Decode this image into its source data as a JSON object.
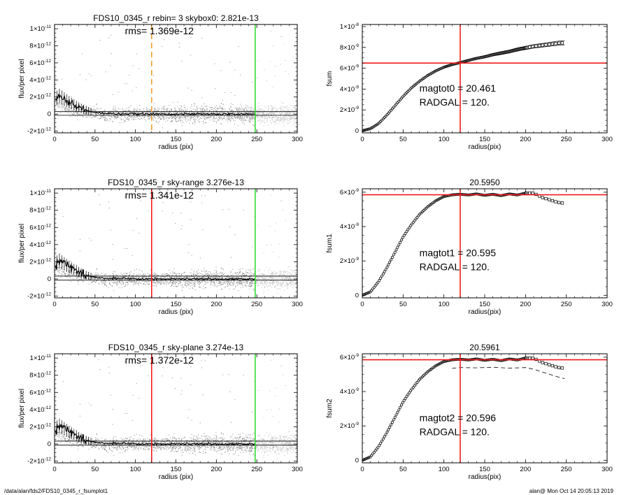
{
  "footer": {
    "path": "/data/alan/fds2/FDS10_0345_r_fsumplot1",
    "stamp": "alan@  Mon Oct 14 20:05:13 2019"
  },
  "colors": {
    "red": "#ee1c1c",
    "green": "#33dd33",
    "orange": "#f0a030",
    "points": "#9a9a9a",
    "axis": "#000000"
  },
  "chart_data": [
    {
      "id": "profile-1",
      "type": "scatter",
      "title": "FDS10_0345_r rebin= 3    skybox0:  2.821e-13",
      "annotation": "rms= 1.369e-12",
      "xlabel": "radius (pix)",
      "ylabel": "flux/per pixel",
      "xlim": [
        0,
        300
      ],
      "ylim": [
        -2.2e-12,
        1.05e-11
      ],
      "xticks": [
        0,
        50,
        100,
        150,
        200,
        250,
        300
      ],
      "yticks": [
        {
          "m": "-2",
          "e": "-12",
          "v": -2e-12
        },
        {
          "m": "0",
          "e": "",
          "v": 0
        },
        {
          "m": "2",
          "e": "-12",
          "v": 2e-12
        },
        {
          "m": "4",
          "e": "-12",
          "v": 4e-12
        },
        {
          "m": "6",
          "e": "-12",
          "v": 6e-12
        },
        {
          "m": "8",
          "e": "-12",
          "v": 8e-12
        },
        {
          "m": "1",
          "e": "-11",
          "v": 1e-11
        }
      ],
      "vlines": [
        {
          "x": 120,
          "color": "#f0a030",
          "style": "dashed"
        },
        {
          "x": 248,
          "color": "#33dd33",
          "style": "solid"
        }
      ],
      "hlines": [
        2.821e-13,
        -1.4e-13
      ],
      "profile": {
        "x": [
          1,
          5,
          10,
          15,
          20,
          25,
          30,
          35,
          40,
          45,
          50,
          60,
          70,
          80,
          100,
          120,
          150,
          200,
          248
        ],
        "y": [
          1.6e-12,
          2.2e-12,
          1.9e-12,
          1.6e-12,
          1.3e-12,
          1.05e-12,
          8e-13,
          6e-13,
          4.2e-13,
          2.8e-13,
          1.8e-13,
          1e-13,
          6e-14,
          3e-14,
          1e-14,
          0,
          0,
          0,
          0
        ]
      }
    },
    {
      "id": "fsum-0",
      "type": "line",
      "title": "",
      "xlabel": "radius(pix)",
      "ylabel": "fsum",
      "xlim": [
        0,
        300
      ],
      "ylim": [
        -2e-10,
        1.02e-08
      ],
      "xticks": [
        0,
        50,
        100,
        150,
        200,
        250,
        300
      ],
      "yticks": [
        {
          "m": "0",
          "e": "",
          "v": 0
        },
        {
          "m": "2",
          "e": "-9",
          "v": 2e-09
        },
        {
          "m": "4",
          "e": "-9",
          "v": 4e-09
        },
        {
          "m": "6",
          "e": "-9",
          "v": 6e-09
        },
        {
          "m": "8",
          "e": "-9",
          "v": 8e-09
        },
        {
          "m": "1",
          "e": "-8",
          "v": 1e-08
        }
      ],
      "vline_x": 120,
      "hline_y": 6.5e-09,
      "annotations": [
        "magtot0 =  20.461",
        "RADGAL =    120."
      ],
      "x": [
        0,
        10,
        20,
        30,
        40,
        50,
        60,
        70,
        80,
        90,
        100,
        110,
        120,
        130,
        140,
        150,
        160,
        170,
        180,
        190,
        200,
        210,
        220,
        230,
        240,
        248
      ],
      "y": [
        0,
        2e-10,
        7e-10,
        1.5e-09,
        2.4e-09,
        3.3e-09,
        4.1e-09,
        4.75e-09,
        5.3e-09,
        5.75e-09,
        6.1e-09,
        6.35e-09,
        6.55e-09,
        6.75e-09,
        6.95e-09,
        7.1e-09,
        7.3e-09,
        7.45e-09,
        7.6e-09,
        7.8e-09,
        7.95e-09,
        8.1e-09,
        8.2e-09,
        8.3e-09,
        8.4e-09,
        8.45e-09
      ],
      "envelope": 2e-10,
      "symbols_after": 200
    },
    {
      "id": "profile-2",
      "type": "scatter",
      "title": "FDS10_0345_r sky-range  3.276e-13",
      "annotation": "rms= 1.341e-12",
      "xlabel": "radius (pix)",
      "ylabel": "flux/per pixel",
      "xlim": [
        0,
        300
      ],
      "ylim": [
        -2.2e-12,
        1.05e-11
      ],
      "xticks": [
        0,
        50,
        100,
        150,
        200,
        250,
        300
      ],
      "yticks": [
        {
          "m": "-2",
          "e": "-12",
          "v": -2e-12
        },
        {
          "m": "0",
          "e": "",
          "v": 0
        },
        {
          "m": "2",
          "e": "-12",
          "v": 2e-12
        },
        {
          "m": "4",
          "e": "-12",
          "v": 4e-12
        },
        {
          "m": "6",
          "e": "-12",
          "v": 6e-12
        },
        {
          "m": "8",
          "e": "-12",
          "v": 8e-12
        },
        {
          "m": "1",
          "e": "-11",
          "v": 1e-11
        }
      ],
      "vlines": [
        {
          "x": 120,
          "color": "#ee1c1c",
          "style": "solid"
        },
        {
          "x": 248,
          "color": "#33dd33",
          "style": "solid"
        }
      ],
      "hlines": [
        3.276e-13,
        -1.4e-13
      ],
      "profile": {
        "x": [
          1,
          5,
          10,
          15,
          20,
          25,
          30,
          35,
          40,
          45,
          50,
          60,
          70,
          80,
          100,
          120,
          150,
          200,
          248
        ],
        "y": [
          1.6e-12,
          2.2e-12,
          1.9e-12,
          1.6e-12,
          1.3e-12,
          1.05e-12,
          8e-13,
          6e-13,
          4.2e-13,
          2.8e-13,
          1.8e-13,
          1e-13,
          6e-14,
          3e-14,
          1e-14,
          0,
          0,
          0,
          0
        ]
      }
    },
    {
      "id": "fsum-1",
      "type": "line",
      "title": "20.5950",
      "xlabel": "radius(pix)",
      "ylabel": "fsum1",
      "xlim": [
        0,
        300
      ],
      "ylim": [
        -1.5e-10,
        6.2e-09
      ],
      "xticks": [
        0,
        50,
        100,
        150,
        200,
        250,
        300
      ],
      "yticks": [
        {
          "m": "0",
          "e": "",
          "v": 0
        },
        {
          "m": "2",
          "e": "-9",
          "v": 2e-09
        },
        {
          "m": "4",
          "e": "-9",
          "v": 4e-09
        },
        {
          "m": "6",
          "e": "-9",
          "v": 6e-09
        }
      ],
      "vline_x": 120,
      "hline_y": 5.85e-09,
      "annotations": [
        "magtot1 =  20.595",
        "RADGAL =    120."
      ],
      "x": [
        0,
        10,
        20,
        30,
        40,
        50,
        60,
        70,
        80,
        90,
        100,
        110,
        120,
        130,
        140,
        150,
        160,
        170,
        180,
        190,
        200,
        210,
        220,
        230,
        240,
        248
      ],
      "y": [
        0,
        2e-10,
        8e-10,
        1.6e-09,
        2.5e-09,
        3.4e-09,
        4.1e-09,
        4.7e-09,
        5.15e-09,
        5.5e-09,
        5.75e-09,
        5.85e-09,
        5.88e-09,
        5.84e-09,
        5.9e-09,
        5.82e-09,
        5.88e-09,
        5.8e-09,
        5.9e-09,
        5.84e-09,
        5.95e-09,
        5.95e-09,
        5.7e-09,
        5.55e-09,
        5.4e-09,
        5.35e-09
      ],
      "symbols_after": 200
    },
    {
      "id": "profile-3",
      "type": "scatter",
      "title": "FDS10_0345_r sky-plane  3.274e-13",
      "annotation": "rms= 1.372e-12",
      "xlabel": "radius (pix)",
      "ylabel": "flux/per pixel",
      "xlim": [
        0,
        300
      ],
      "ylim": [
        -2.2e-12,
        1.05e-11
      ],
      "xticks": [
        0,
        50,
        100,
        150,
        200,
        250,
        300
      ],
      "yticks": [
        {
          "m": "-2",
          "e": "-12",
          "v": -2e-12
        },
        {
          "m": "0",
          "e": "",
          "v": 0
        },
        {
          "m": "2",
          "e": "-12",
          "v": 2e-12
        },
        {
          "m": "4",
          "e": "-12",
          "v": 4e-12
        },
        {
          "m": "6",
          "e": "-12",
          "v": 6e-12
        },
        {
          "m": "8",
          "e": "-12",
          "v": 8e-12
        },
        {
          "m": "1",
          "e": "-11",
          "v": 1e-11
        }
      ],
      "vlines": [
        {
          "x": 120,
          "color": "#ee1c1c",
          "style": "solid"
        },
        {
          "x": 248,
          "color": "#33dd33",
          "style": "solid"
        }
      ],
      "hlines": [
        3.274e-13,
        -1.4e-13
      ],
      "profile": {
        "x": [
          1,
          5,
          10,
          15,
          20,
          25,
          30,
          35,
          40,
          45,
          50,
          60,
          70,
          80,
          100,
          120,
          150,
          200,
          248
        ],
        "y": [
          1.6e-12,
          2.2e-12,
          1.9e-12,
          1.6e-12,
          1.3e-12,
          1.05e-12,
          8e-13,
          6e-13,
          4.2e-13,
          2.8e-13,
          1.8e-13,
          1e-13,
          6e-14,
          3e-14,
          1e-14,
          0,
          0,
          0,
          0
        ]
      }
    },
    {
      "id": "fsum-2",
      "type": "line",
      "title": "20.5961",
      "xlabel": "radius(pix)",
      "ylabel": "fsum2",
      "xlim": [
        0,
        300
      ],
      "ylim": [
        -1.5e-10,
        6.2e-09
      ],
      "xticks": [
        0,
        50,
        100,
        150,
        200,
        250,
        300
      ],
      "yticks": [
        {
          "m": "0",
          "e": "",
          "v": 0
        },
        {
          "m": "2",
          "e": "-9",
          "v": 2e-09
        },
        {
          "m": "4",
          "e": "-9",
          "v": 4e-09
        },
        {
          "m": "6",
          "e": "-9",
          "v": 6e-09
        }
      ],
      "vline_x": 120,
      "hline_y": 5.85e-09,
      "annotations": [
        "magtot2 =  20.596",
        "RADGAL =    120."
      ],
      "x": [
        0,
        10,
        20,
        30,
        40,
        50,
        60,
        70,
        80,
        90,
        100,
        110,
        120,
        130,
        140,
        150,
        160,
        170,
        180,
        190,
        200,
        210,
        220,
        230,
        240,
        248
      ],
      "y": [
        0,
        2e-10,
        8e-10,
        1.6e-09,
        2.5e-09,
        3.4e-09,
        4.1e-09,
        4.7e-09,
        5.15e-09,
        5.5e-09,
        5.75e-09,
        5.85e-09,
        5.88e-09,
        5.84e-09,
        5.9e-09,
        5.82e-09,
        5.88e-09,
        5.8e-09,
        5.9e-09,
        5.84e-09,
        5.95e-09,
        5.95e-09,
        5.7e-09,
        5.55e-09,
        5.4e-09,
        5.35e-09
      ],
      "dashed": {
        "x": [
          110,
          120,
          140,
          160,
          180,
          200,
          210,
          220,
          230,
          240,
          248
        ],
        "y": [
          5.35e-09,
          5.4e-09,
          5.38e-09,
          5.42e-09,
          5.36e-09,
          5.4e-09,
          5.3e-09,
          5.15e-09,
          5e-09,
          4.85e-09,
          4.75e-09
        ]
      },
      "symbols_after": 200
    }
  ]
}
